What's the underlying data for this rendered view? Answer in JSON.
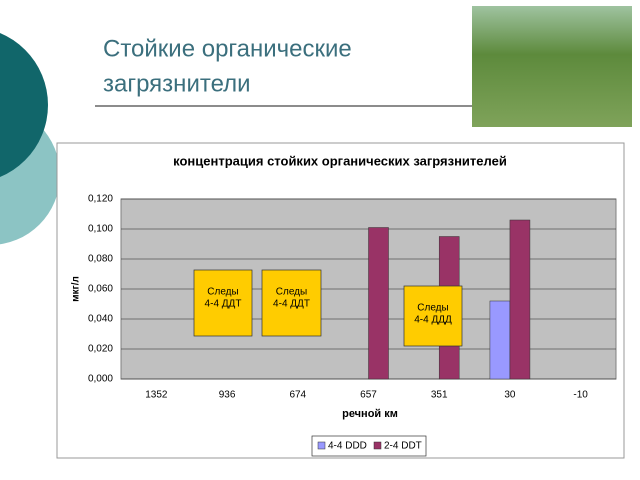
{
  "slide": {
    "title_lines": [
      "Стойкие органические",
      "загрязнители"
    ]
  },
  "chart_data": {
    "type": "bar",
    "title": "концентрация стойких органических загрязнителей",
    "x_label": "речной км",
    "y_label": "мкг/л",
    "categories": [
      "1352",
      "936",
      "674",
      "657",
      "351",
      "30",
      "-10"
    ],
    "series": [
      {
        "name": "4-4 DDD",
        "color": "#9999ff",
        "values": [
          null,
          null,
          null,
          null,
          null,
          0.052,
          null
        ]
      },
      {
        "name": "2-4 DDT",
        "color": "#993366",
        "values": [
          null,
          null,
          null,
          0.101,
          0.095,
          0.106,
          null
        ]
      }
    ],
    "ylim": [
      0,
      0.12
    ],
    "yticks": [
      {
        "value": 0,
        "label": "0,000"
      },
      {
        "value": 0.02,
        "label": "0,020"
      },
      {
        "value": 0.04,
        "label": "0,040"
      },
      {
        "value": 0.06,
        "label": "0,060"
      },
      {
        "value": 0.08,
        "label": "0,080"
      },
      {
        "value": 0.1,
        "label": "0,100"
      },
      {
        "value": 0.12,
        "label": "0,120"
      }
    ],
    "grid": true,
    "annotations": [
      {
        "lines": [
          "Следы",
          "4-4 ДДТ"
        ]
      },
      {
        "lines": [
          "Следы",
          "4-4 ДДТ"
        ]
      },
      {
        "lines": [
          "Следы",
          "4-4 ДДД"
        ]
      }
    ]
  }
}
